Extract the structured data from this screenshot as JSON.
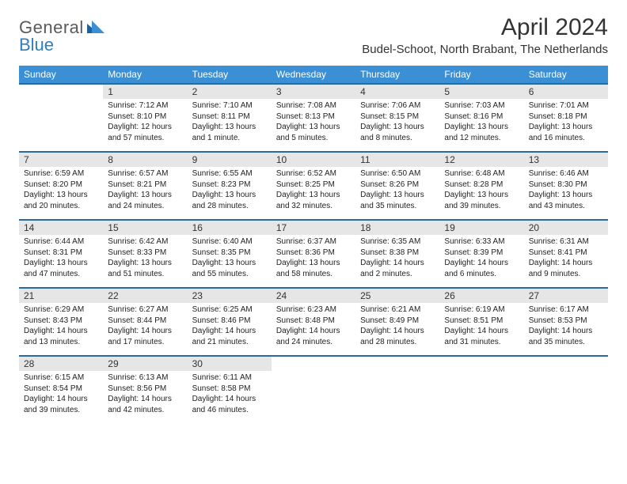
{
  "logo": {
    "text1": "General",
    "text2": "Blue"
  },
  "title": "April 2024",
  "location": "Budel-Schoot, North Brabant, The Netherlands",
  "colors": {
    "header_bg": "#3b8fd4",
    "header_border": "#2d6a9c",
    "daynum_bg": "#e6e6e6",
    "logo_gray": "#5a5a5a",
    "logo_blue": "#2d7fbf"
  },
  "day_headers": [
    "Sunday",
    "Monday",
    "Tuesday",
    "Wednesday",
    "Thursday",
    "Friday",
    "Saturday"
  ],
  "weeks": [
    [
      {
        "n": "",
        "sr": "",
        "ss": "",
        "dl": ""
      },
      {
        "n": "1",
        "sr": "Sunrise: 7:12 AM",
        "ss": "Sunset: 8:10 PM",
        "dl": "Daylight: 12 hours and 57 minutes."
      },
      {
        "n": "2",
        "sr": "Sunrise: 7:10 AM",
        "ss": "Sunset: 8:11 PM",
        "dl": "Daylight: 13 hours and 1 minute."
      },
      {
        "n": "3",
        "sr": "Sunrise: 7:08 AM",
        "ss": "Sunset: 8:13 PM",
        "dl": "Daylight: 13 hours and 5 minutes."
      },
      {
        "n": "4",
        "sr": "Sunrise: 7:06 AM",
        "ss": "Sunset: 8:15 PM",
        "dl": "Daylight: 13 hours and 8 minutes."
      },
      {
        "n": "5",
        "sr": "Sunrise: 7:03 AM",
        "ss": "Sunset: 8:16 PM",
        "dl": "Daylight: 13 hours and 12 minutes."
      },
      {
        "n": "6",
        "sr": "Sunrise: 7:01 AM",
        "ss": "Sunset: 8:18 PM",
        "dl": "Daylight: 13 hours and 16 minutes."
      }
    ],
    [
      {
        "n": "7",
        "sr": "Sunrise: 6:59 AM",
        "ss": "Sunset: 8:20 PM",
        "dl": "Daylight: 13 hours and 20 minutes."
      },
      {
        "n": "8",
        "sr": "Sunrise: 6:57 AM",
        "ss": "Sunset: 8:21 PM",
        "dl": "Daylight: 13 hours and 24 minutes."
      },
      {
        "n": "9",
        "sr": "Sunrise: 6:55 AM",
        "ss": "Sunset: 8:23 PM",
        "dl": "Daylight: 13 hours and 28 minutes."
      },
      {
        "n": "10",
        "sr": "Sunrise: 6:52 AM",
        "ss": "Sunset: 8:25 PM",
        "dl": "Daylight: 13 hours and 32 minutes."
      },
      {
        "n": "11",
        "sr": "Sunrise: 6:50 AM",
        "ss": "Sunset: 8:26 PM",
        "dl": "Daylight: 13 hours and 35 minutes."
      },
      {
        "n": "12",
        "sr": "Sunrise: 6:48 AM",
        "ss": "Sunset: 8:28 PM",
        "dl": "Daylight: 13 hours and 39 minutes."
      },
      {
        "n": "13",
        "sr": "Sunrise: 6:46 AM",
        "ss": "Sunset: 8:30 PM",
        "dl": "Daylight: 13 hours and 43 minutes."
      }
    ],
    [
      {
        "n": "14",
        "sr": "Sunrise: 6:44 AM",
        "ss": "Sunset: 8:31 PM",
        "dl": "Daylight: 13 hours and 47 minutes."
      },
      {
        "n": "15",
        "sr": "Sunrise: 6:42 AM",
        "ss": "Sunset: 8:33 PM",
        "dl": "Daylight: 13 hours and 51 minutes."
      },
      {
        "n": "16",
        "sr": "Sunrise: 6:40 AM",
        "ss": "Sunset: 8:35 PM",
        "dl": "Daylight: 13 hours and 55 minutes."
      },
      {
        "n": "17",
        "sr": "Sunrise: 6:37 AM",
        "ss": "Sunset: 8:36 PM",
        "dl": "Daylight: 13 hours and 58 minutes."
      },
      {
        "n": "18",
        "sr": "Sunrise: 6:35 AM",
        "ss": "Sunset: 8:38 PM",
        "dl": "Daylight: 14 hours and 2 minutes."
      },
      {
        "n": "19",
        "sr": "Sunrise: 6:33 AM",
        "ss": "Sunset: 8:39 PM",
        "dl": "Daylight: 14 hours and 6 minutes."
      },
      {
        "n": "20",
        "sr": "Sunrise: 6:31 AM",
        "ss": "Sunset: 8:41 PM",
        "dl": "Daylight: 14 hours and 9 minutes."
      }
    ],
    [
      {
        "n": "21",
        "sr": "Sunrise: 6:29 AM",
        "ss": "Sunset: 8:43 PM",
        "dl": "Daylight: 14 hours and 13 minutes."
      },
      {
        "n": "22",
        "sr": "Sunrise: 6:27 AM",
        "ss": "Sunset: 8:44 PM",
        "dl": "Daylight: 14 hours and 17 minutes."
      },
      {
        "n": "23",
        "sr": "Sunrise: 6:25 AM",
        "ss": "Sunset: 8:46 PM",
        "dl": "Daylight: 14 hours and 21 minutes."
      },
      {
        "n": "24",
        "sr": "Sunrise: 6:23 AM",
        "ss": "Sunset: 8:48 PM",
        "dl": "Daylight: 14 hours and 24 minutes."
      },
      {
        "n": "25",
        "sr": "Sunrise: 6:21 AM",
        "ss": "Sunset: 8:49 PM",
        "dl": "Daylight: 14 hours and 28 minutes."
      },
      {
        "n": "26",
        "sr": "Sunrise: 6:19 AM",
        "ss": "Sunset: 8:51 PM",
        "dl": "Daylight: 14 hours and 31 minutes."
      },
      {
        "n": "27",
        "sr": "Sunrise: 6:17 AM",
        "ss": "Sunset: 8:53 PM",
        "dl": "Daylight: 14 hours and 35 minutes."
      }
    ],
    [
      {
        "n": "28",
        "sr": "Sunrise: 6:15 AM",
        "ss": "Sunset: 8:54 PM",
        "dl": "Daylight: 14 hours and 39 minutes."
      },
      {
        "n": "29",
        "sr": "Sunrise: 6:13 AM",
        "ss": "Sunset: 8:56 PM",
        "dl": "Daylight: 14 hours and 42 minutes."
      },
      {
        "n": "30",
        "sr": "Sunrise: 6:11 AM",
        "ss": "Sunset: 8:58 PM",
        "dl": "Daylight: 14 hours and 46 minutes."
      },
      {
        "n": "",
        "sr": "",
        "ss": "",
        "dl": ""
      },
      {
        "n": "",
        "sr": "",
        "ss": "",
        "dl": ""
      },
      {
        "n": "",
        "sr": "",
        "ss": "",
        "dl": ""
      },
      {
        "n": "",
        "sr": "",
        "ss": "",
        "dl": ""
      }
    ]
  ]
}
